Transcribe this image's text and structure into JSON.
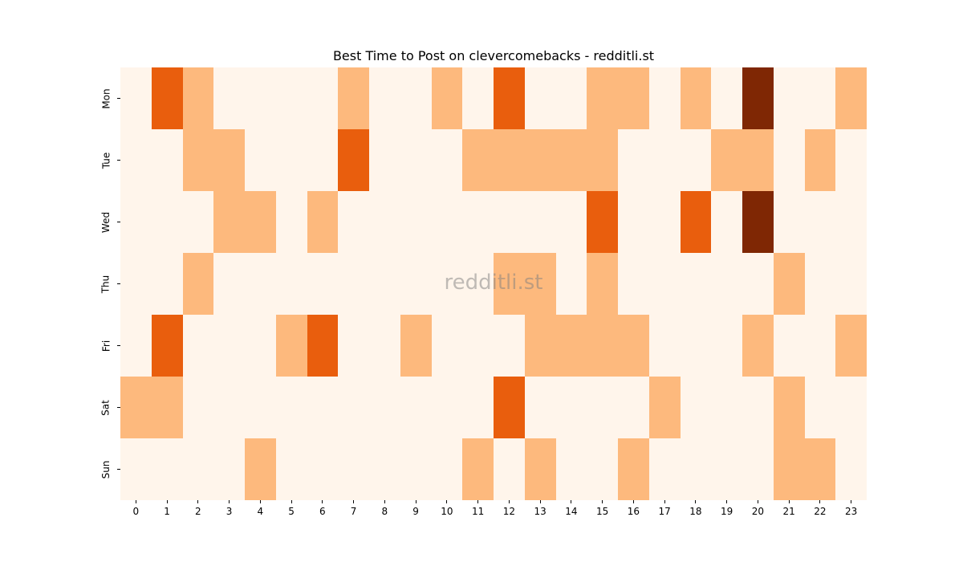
{
  "chart_data": {
    "type": "heatmap",
    "title": "Best Time to Post on clevercomebacks - redditli.st",
    "watermark": "redditli.st",
    "xlabel": "",
    "ylabel": "",
    "x_categories": [
      "0",
      "1",
      "2",
      "3",
      "4",
      "5",
      "6",
      "7",
      "8",
      "9",
      "10",
      "11",
      "12",
      "13",
      "14",
      "15",
      "16",
      "17",
      "18",
      "19",
      "20",
      "21",
      "22",
      "23"
    ],
    "y_categories": [
      "Mon",
      "Tue",
      "Wed",
      "Thu",
      "Fri",
      "Sat",
      "Sun"
    ],
    "colormap": "Oranges",
    "level_colors": [
      "#fff5eb",
      "#fdb97d",
      "#e95e0d",
      "#7f2704"
    ],
    "colorbar": false,
    "grid": false,
    "values": [
      [
        0,
        2,
        1,
        0,
        0,
        0,
        0,
        1,
        0,
        0,
        1,
        0,
        2,
        0,
        0,
        1,
        1,
        0,
        1,
        0,
        3,
        0,
        0,
        1
      ],
      [
        0,
        0,
        1,
        1,
        0,
        0,
        0,
        2,
        0,
        0,
        0,
        1,
        1,
        1,
        1,
        1,
        0,
        0,
        0,
        1,
        1,
        0,
        1,
        0
      ],
      [
        0,
        0,
        0,
        1,
        1,
        0,
        1,
        0,
        0,
        0,
        0,
        0,
        0,
        0,
        0,
        2,
        0,
        0,
        2,
        0,
        3,
        0,
        0,
        0
      ],
      [
        0,
        0,
        1,
        0,
        0,
        0,
        0,
        0,
        0,
        0,
        0,
        0,
        1,
        1,
        0,
        1,
        0,
        0,
        0,
        0,
        0,
        1,
        0,
        0
      ],
      [
        0,
        2,
        0,
        0,
        0,
        1,
        2,
        0,
        0,
        1,
        0,
        0,
        0,
        1,
        1,
        1,
        1,
        0,
        0,
        0,
        1,
        0,
        0,
        1
      ],
      [
        1,
        1,
        0,
        0,
        0,
        0,
        0,
        0,
        0,
        0,
        0,
        0,
        2,
        0,
        0,
        0,
        0,
        1,
        0,
        0,
        0,
        1,
        0,
        0
      ],
      [
        0,
        0,
        0,
        0,
        1,
        0,
        0,
        0,
        0,
        0,
        0,
        1,
        0,
        1,
        0,
        0,
        1,
        0,
        0,
        0,
        0,
        1,
        1,
        0
      ]
    ]
  }
}
